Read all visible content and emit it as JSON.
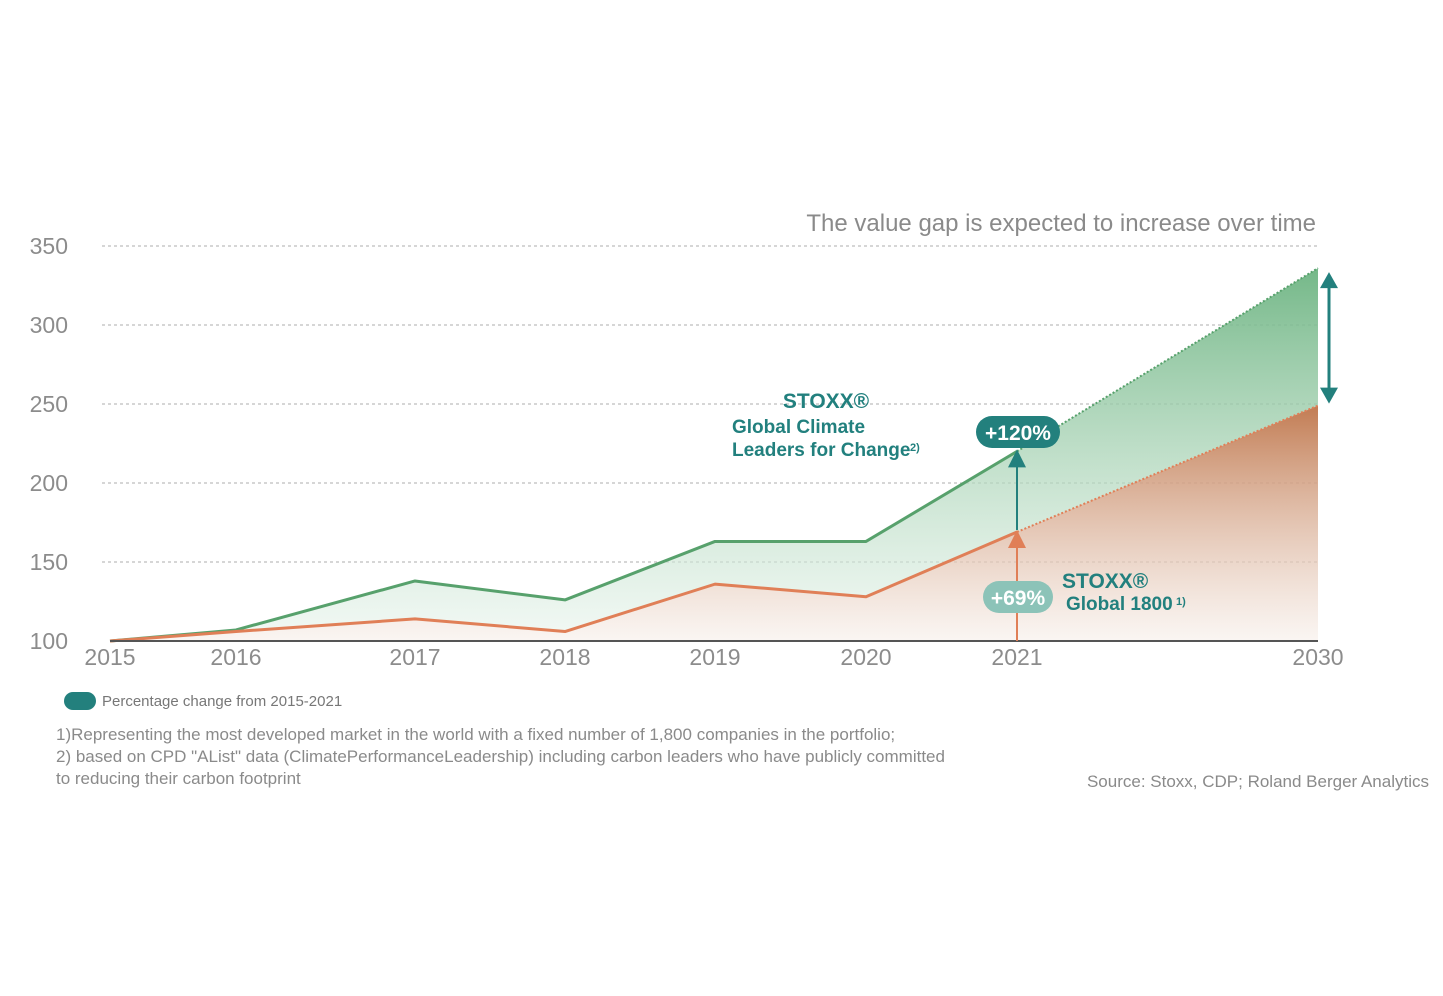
{
  "chart_data": {
    "type": "area",
    "annotation_title": "The value gap is expected to increase over time",
    "y_ticks": [
      "100",
      "150",
      "200",
      "250",
      "300",
      "350"
    ],
    "ylim": [
      100,
      350
    ],
    "x_ticks": [
      "2015",
      "2016",
      "2017",
      "2018",
      "2019",
      "2020",
      "2021",
      "2030"
    ],
    "grid": true,
    "series": [
      {
        "name_lines": [
          "STOXX®",
          "Global Climate",
          "Leaders for Change"
        ],
        "name_footnote": "2)",
        "color": "#57a16c",
        "x": [
          2015,
          2016,
          2017,
          2018,
          2019,
          2020,
          2021,
          2030
        ],
        "values": [
          100,
          107,
          138,
          126,
          163,
          163,
          220,
          336
        ],
        "projected_from": 2021
      },
      {
        "name_lines": [
          "STOXX®",
          "Global 1800"
        ],
        "name_footnote": "1)",
        "color": "#e07f57",
        "x": [
          2015,
          2016,
          2017,
          2018,
          2019,
          2020,
          2021,
          2030
        ],
        "values": [
          100,
          106,
          114,
          106,
          136,
          128,
          169,
          249
        ],
        "projected_from": 2021
      }
    ],
    "badges": [
      {
        "label": "+120%",
        "color": "#23807d"
      },
      {
        "label": "+69%",
        "color": "#8cc3b8"
      }
    ]
  },
  "legend": {
    "label": "Percentage change from 2015-2021",
    "color": "#23807d"
  },
  "footnotes": [
    "1)Representing the most developed market in the world with a fixed number of 1,800 companies in the portfolio;",
    "2) based on CPD \"AList\" data (ClimatePerformanceLeadership) including carbon leaders who have publicly committed",
    "to reducing their carbon footprint"
  ],
  "source": "Source: Stoxx, CDP; Roland Berger Analytics"
}
